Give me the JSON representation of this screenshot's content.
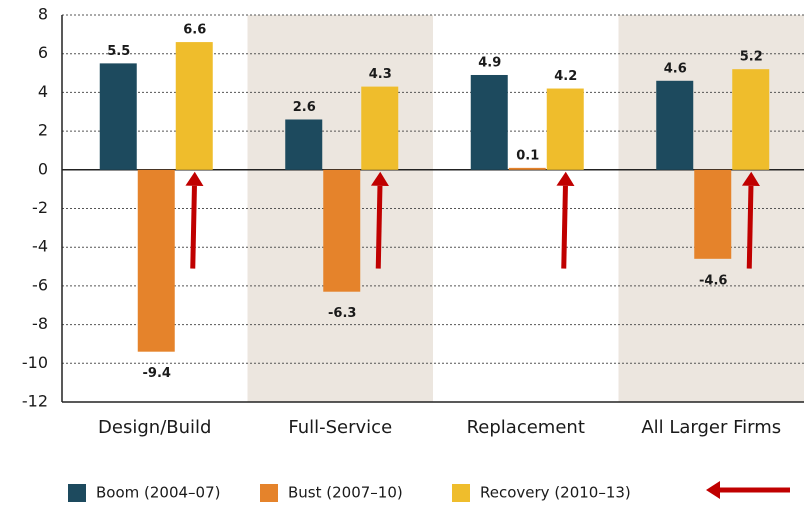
{
  "chart_data": {
    "type": "bar",
    "categories": [
      "Design/Build",
      "Full-Service",
      "Replacement",
      "All Larger Firms"
    ],
    "series": [
      {
        "name": "Boom (2004–07)",
        "color": "#1d4a5e",
        "values": [
          5.5,
          2.6,
          4.9,
          4.6
        ]
      },
      {
        "name": "Bust (2007–10)",
        "color": "#e5832b",
        "values": [
          -9.4,
          -6.3,
          0.1,
          -4.6
        ]
      },
      {
        "name": "Recovery (2010–13)",
        "color": "#efbd2c",
        "values": [
          6.6,
          4.3,
          4.2,
          5.2
        ]
      }
    ],
    "ylim": [
      -12,
      8
    ],
    "yticks": [
      -12,
      -10,
      -8,
      -6,
      -4,
      -2,
      0,
      2,
      4,
      6,
      8
    ],
    "grid": true,
    "band_color": "#ece6df"
  }
}
